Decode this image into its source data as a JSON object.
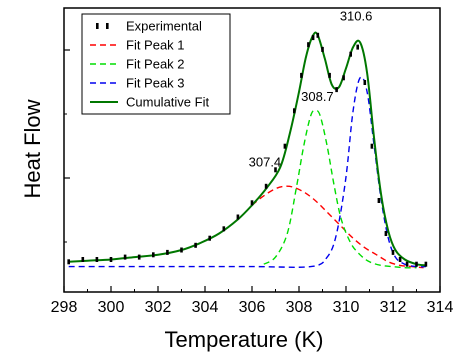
{
  "chart_data": {
    "type": "line",
    "title": "",
    "xlabel": "Temperature (K)",
    "ylabel": "Heat Flow",
    "xlim": [
      298,
      314
    ],
    "ylim": [
      0,
      1
    ],
    "x_ticks": [
      298,
      300,
      302,
      304,
      306,
      308,
      310,
      312,
      314
    ],
    "y_tick_labels": false,
    "grid": false,
    "legend_position": "top-left",
    "series": [
      {
        "name": "Experimental",
        "style": "dotted",
        "color": "#000000",
        "x": [
          298.2,
          298.8,
          299.4,
          300.0,
          300.6,
          301.2,
          301.8,
          302.4,
          303.0,
          303.6,
          304.2,
          304.8,
          305.4,
          306.0,
          306.6,
          307.0,
          307.4,
          307.8,
          308.1,
          308.4,
          308.6,
          308.8,
          309.0,
          309.3,
          309.6,
          309.9,
          310.2,
          310.5,
          310.8,
          311.1,
          311.4,
          311.7,
          312.0,
          312.3,
          312.6,
          313.0,
          313.4
        ],
        "y": [
          0.06,
          0.07,
          0.07,
          0.07,
          0.08,
          0.08,
          0.09,
          0.1,
          0.11,
          0.13,
          0.16,
          0.2,
          0.25,
          0.31,
          0.38,
          0.45,
          0.55,
          0.7,
          0.85,
          0.98,
          1.01,
          1.02,
          0.96,
          0.85,
          0.79,
          0.84,
          0.94,
          0.97,
          0.82,
          0.55,
          0.32,
          0.18,
          0.1,
          0.07,
          0.05,
          0.05,
          0.05
        ]
      },
      {
        "name": "Fit Peak 1",
        "style": "dashed",
        "color": "#ff0000",
        "x": [
          306.0,
          306.5,
          307.0,
          307.4,
          307.8,
          308.3,
          308.8,
          309.3,
          309.8,
          310.3,
          310.8,
          311.3,
          311.8,
          312.3,
          312.8,
          313.3
        ],
        "y": [
          0.3,
          0.34,
          0.37,
          0.38,
          0.375,
          0.35,
          0.31,
          0.26,
          0.21,
          0.16,
          0.12,
          0.09,
          0.06,
          0.045,
          0.04,
          0.035
        ]
      },
      {
        "name": "Fit Peak 2",
        "style": "dashed",
        "color": "#00dd00",
        "x": [
          306.5,
          307.0,
          307.5,
          307.9,
          308.2,
          308.5,
          308.7,
          308.9,
          309.2,
          309.5,
          309.8,
          310.2,
          310.6,
          311.0,
          311.5,
          312.0,
          312.5,
          313.0
        ],
        "y": [
          0.05,
          0.08,
          0.18,
          0.38,
          0.55,
          0.68,
          0.7,
          0.68,
          0.55,
          0.38,
          0.24,
          0.14,
          0.09,
          0.06,
          0.045,
          0.04,
          0.035,
          0.035
        ]
      },
      {
        "name": "Fit Peak 3",
        "style": "dashed",
        "color": "#0000ee",
        "x": [
          298.2,
          302.0,
          306.0,
          308.5,
          309.2,
          309.6,
          310.0,
          310.3,
          310.6,
          310.9,
          311.2,
          311.5,
          311.8,
          312.1,
          312.5,
          313.0,
          313.4
        ],
        "y": [
          0.04,
          0.04,
          0.04,
          0.04,
          0.08,
          0.18,
          0.42,
          0.7,
          0.84,
          0.78,
          0.55,
          0.32,
          0.16,
          0.08,
          0.05,
          0.04,
          0.04
        ]
      },
      {
        "name": "Cumulative Fit",
        "style": "solid",
        "color": "#007700",
        "x": [
          298.2,
          299.0,
          300.0,
          301.0,
          302.0,
          303.0,
          303.8,
          304.6,
          305.4,
          306.0,
          306.6,
          307.2,
          307.6,
          308.0,
          308.3,
          308.6,
          308.8,
          309.1,
          309.4,
          309.7,
          310.0,
          310.3,
          310.6,
          310.9,
          311.2,
          311.5,
          311.8,
          312.1,
          312.5,
          313.0,
          313.4
        ],
        "y": [
          0.06,
          0.065,
          0.07,
          0.08,
          0.09,
          0.11,
          0.14,
          0.18,
          0.24,
          0.3,
          0.37,
          0.46,
          0.6,
          0.78,
          0.93,
          1.02,
          1.02,
          0.92,
          0.81,
          0.8,
          0.88,
          0.97,
          0.99,
          0.86,
          0.58,
          0.34,
          0.19,
          0.11,
          0.07,
          0.05,
          0.045
        ]
      }
    ],
    "annotations": [
      {
        "text": "307.4",
        "x": 307.4,
        "y": 0.38
      },
      {
        "text": "308.7",
        "x": 308.7,
        "y": 0.7
      },
      {
        "text": "310.6",
        "x": 310.6,
        "y": 0.99
      }
    ]
  }
}
